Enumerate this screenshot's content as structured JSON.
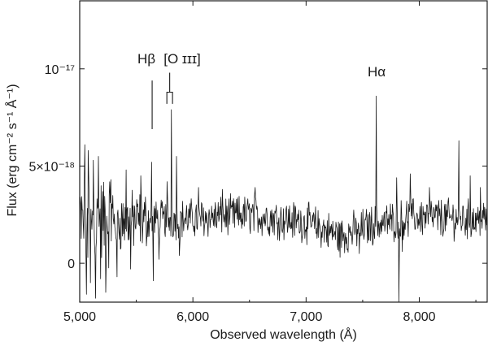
{
  "chart_data": {
    "type": "line",
    "xlabel": "Observed wavelength (Å)",
    "ylabel": "Flux (erg cm⁻² s⁻¹ Å⁻¹)",
    "xlim": [
      5000,
      8600
    ],
    "ylim": [
      -2e-18,
      1.35e-17
    ],
    "x_ticks": [
      {
        "value": 5000,
        "label": "5,000"
      },
      {
        "value": 6000,
        "label": "6,000"
      },
      {
        "value": 7000,
        "label": "7,000"
      },
      {
        "value": 8000,
        "label": "8,000"
      }
    ],
    "y_ticks": [
      {
        "value": 0,
        "label": "0"
      },
      {
        "value": 5e-18,
        "label": "5×10⁻¹⁸"
      },
      {
        "value": 1e-17,
        "label": "10⁻¹⁷"
      }
    ],
    "grid": false,
    "line_color": "#1a1a1a",
    "series": [
      {
        "name": "",
        "baseline": [
          [
            5000,
            2e-18
          ],
          [
            5200,
            2.1e-18
          ],
          [
            5500,
            2.2e-18
          ],
          [
            6000,
            2.3e-18
          ],
          [
            6500,
            2.5e-18
          ],
          [
            7000,
            2.1e-18
          ],
          [
            7300,
            1.4e-18
          ],
          [
            7600,
            2e-18
          ],
          [
            8000,
            2.4e-18
          ],
          [
            8300,
            2.3e-18
          ],
          [
            8600,
            2.2e-18
          ]
        ],
        "features": [
          [
            5045,
            6.1e-18
          ],
          [
            5060,
            -1.6e-18
          ],
          [
            5075,
            5.8e-18
          ],
          [
            5095,
            -1e-18
          ],
          [
            5120,
            5.3e-18
          ],
          [
            5140,
            -1.8e-18
          ],
          [
            5165,
            5.5e-18
          ],
          [
            5185,
            -8e-19
          ],
          [
            5230,
            -1.5e-18
          ],
          [
            5275,
            4.3e-18
          ],
          [
            5330,
            -7e-19
          ],
          [
            5410,
            4.8e-18
          ],
          [
            5450,
            -3e-19
          ],
          [
            5540,
            4.5e-18
          ],
          [
            5635,
            5.2e-18
          ],
          [
            5650,
            -9e-19
          ],
          [
            5700,
            2e-19
          ],
          [
            5772,
            4.2e-18
          ],
          [
            5810,
            7.9e-18
          ],
          [
            5855,
            5.5e-18
          ],
          [
            5880,
            4e-19
          ],
          [
            6050,
            3.9e-18
          ],
          [
            6260,
            3.8e-18
          ],
          [
            6550,
            3.9e-18
          ],
          [
            7300,
            3e-19
          ],
          [
            7470,
            5e-19
          ],
          [
            7620,
            8.6e-18
          ],
          [
            7800,
            4.4e-18
          ],
          [
            7820,
            -2.2e-18
          ],
          [
            7850,
            6e-19
          ],
          [
            7920,
            4.6e-18
          ],
          [
            8090,
            3.9e-18
          ],
          [
            8350,
            6.3e-18
          ],
          [
            8450,
            4.5e-18
          ],
          [
            8540,
            3.9e-18
          ]
        ]
      }
    ],
    "annotations": {
      "hbeta": {
        "label": "Hβ",
        "x": 5640,
        "y_bottom": 6.9e-18,
        "y_top": 9.4e-18
      },
      "oiii": {
        "label": "[O ɪɪɪ]",
        "x": [
          5770,
          5820
        ],
        "y_bottom": 8.2e-18,
        "y_top": 8.8e-18,
        "y_stem_top": 9.8e-18
      },
      "halpha": {
        "label": "Hα"
      }
    }
  }
}
